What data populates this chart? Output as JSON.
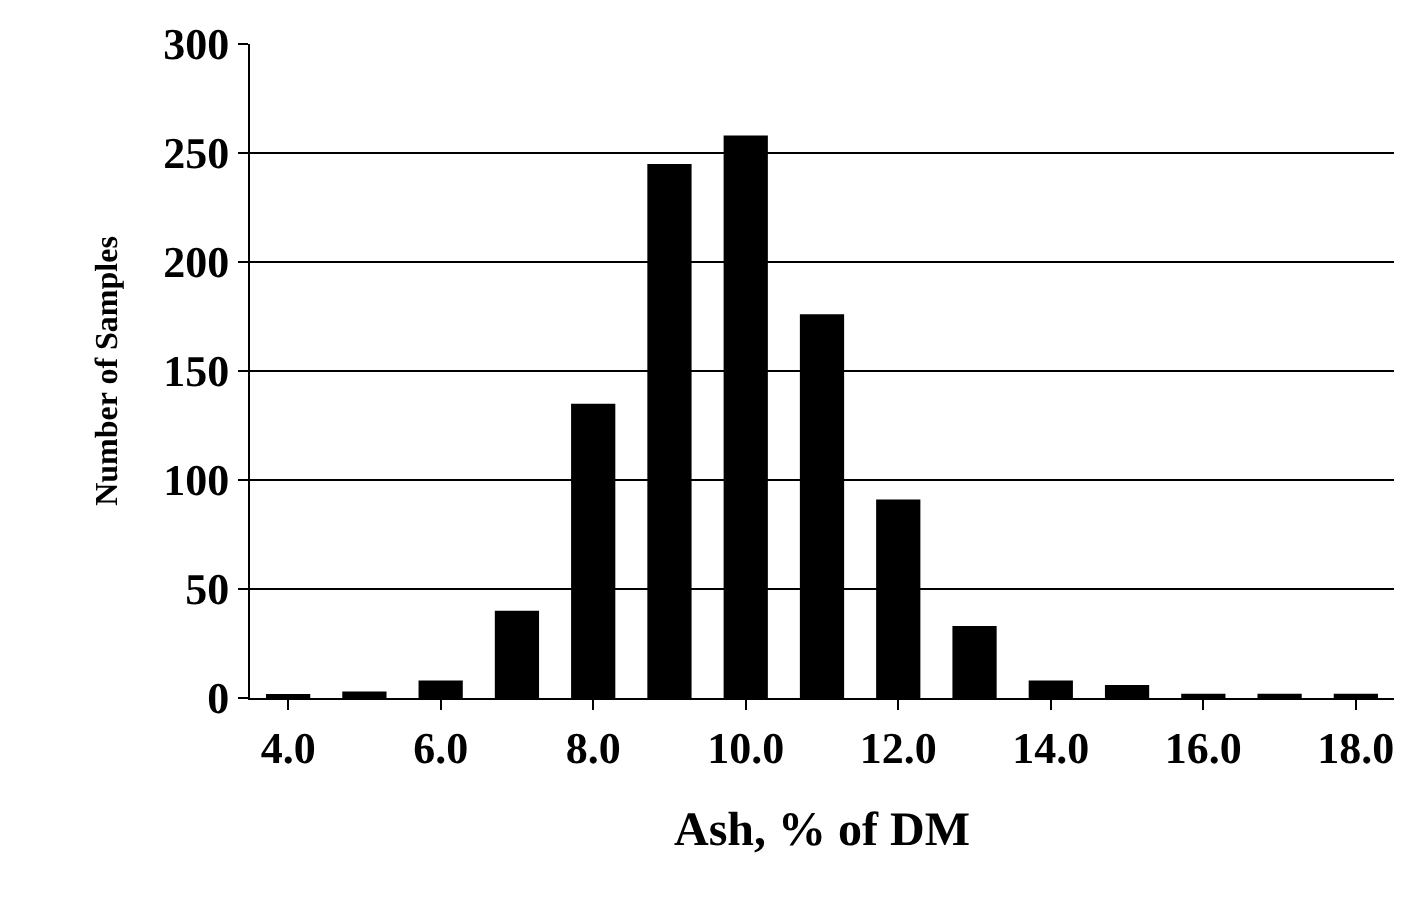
{
  "chart_data": {
    "type": "bar",
    "xlabel": "Ash, % of DM",
    "ylabel": "Number of Samples",
    "categories": [
      "4.0",
      null,
      "6.0",
      null,
      "8.0",
      null,
      "10.0",
      null,
      "12.0",
      null,
      "14.0",
      null,
      "16.0",
      null,
      "18.0"
    ],
    "values": [
      1,
      3,
      8,
      40,
      135,
      245,
      258,
      176,
      91,
      33,
      8,
      6,
      2,
      2,
      2
    ],
    "color": "#000000",
    "ylim": [
      0,
      300
    ],
    "yticks": [
      0,
      50,
      100,
      150,
      200,
      250,
      300
    ],
    "grid": "y",
    "legend": false
  }
}
